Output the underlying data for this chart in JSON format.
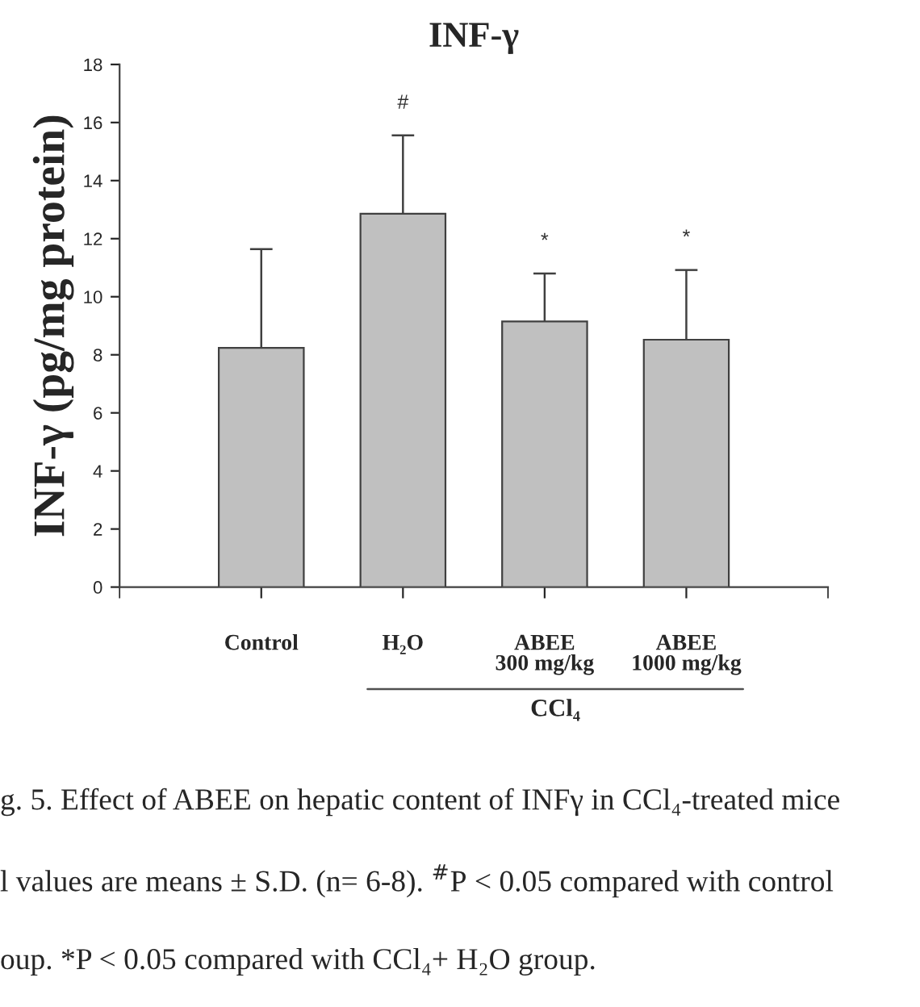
{
  "chart_data": {
    "type": "bar",
    "title": "INF-γ",
    "ylabel": "INF-γ (pg/mg protein)",
    "categories": [
      "Control",
      "H₂O",
      "ABEE\n300 mg/kg",
      "ABEE\n1000 mg/kg"
    ],
    "values": [
      8.24,
      12.86,
      9.15,
      8.52
    ],
    "errors": [
      3.4,
      2.7,
      1.65,
      2.4
    ],
    "color": "#c0c0c0",
    "ylim": [
      0,
      18
    ],
    "yticks": [
      0,
      2,
      4,
      6,
      8,
      10,
      12,
      14,
      16,
      18
    ],
    "grid": false,
    "annotations": [
      "CCl₄",
      "g. 5. Effect of ABEE on hepatic content of INFγ in CCl₄-treated mice",
      "l values are means ± S.D. (n= 6-8). $^{#}$P < 0.05 compared with control",
      "oup. *P < 0.05 compared with CCl₄+ H₂O group.",
      {
        "text": "#",
        "x": "H₂O",
        "y": 15.56
      },
      {
        "text": "*",
        "x": "ABEE\n300 mg/kg",
        "y": 10.8
      },
      {
        "text": "*",
        "x": "ABEE\n1000 mg/kg",
        "y": 10.92
      }
    ]
  }
}
